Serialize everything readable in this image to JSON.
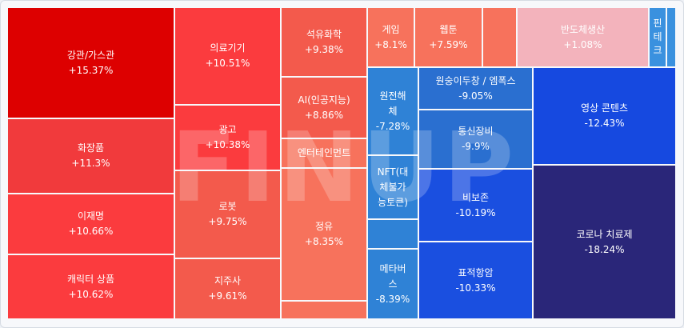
{
  "watermark": "FINUP",
  "chart_data": {
    "type": "treemap",
    "unit": "%",
    "items": [
      {
        "name": "강관/가스관",
        "value": "+15.37%",
        "change": 15.37,
        "color": "#dd0000"
      },
      {
        "name": "화장품",
        "value": "+11.3%",
        "change": 11.3,
        "color": "#f13a3c"
      },
      {
        "name": "이재명",
        "value": "+10.66%",
        "change": 10.66,
        "color": "#fb3b3e"
      },
      {
        "name": "캐릭터 상품",
        "value": "+10.62%",
        "change": 10.62,
        "color": "#fb3b3e"
      },
      {
        "name": "의료기기",
        "value": "+10.51%",
        "change": 10.51,
        "color": "#fb3b3e"
      },
      {
        "name": "광고",
        "value": "+10.38%",
        "change": 10.38,
        "color": "#fb3b3e"
      },
      {
        "name": "로봇",
        "value": "+9.75%",
        "change": 9.75,
        "color": "#f35a4c"
      },
      {
        "name": "지주사",
        "value": "+9.61%",
        "change": 9.61,
        "color": "#f35a4c"
      },
      {
        "name": "석유화학",
        "value": "+9.38%",
        "change": 9.38,
        "color": "#f35a4c"
      },
      {
        "name": "AI(인공지능)",
        "value": "+8.86%",
        "change": 8.86,
        "color": "#f35a4c"
      },
      {
        "name": "엔터테인먼트",
        "value": "",
        "change": null,
        "color": "#f7725c"
      },
      {
        "name": "정유",
        "value": "+8.35%",
        "change": 8.35,
        "color": "#f7725c"
      },
      {
        "name": "",
        "value": "",
        "change": null,
        "color": "#f7725c"
      },
      {
        "name": "게임",
        "value": "+8.1%",
        "change": 8.1,
        "color": "#f7725c"
      },
      {
        "name": "웹툰",
        "value": "+7.59%",
        "change": 7.59,
        "color": "#f7725c"
      },
      {
        "name": "",
        "value": "",
        "change": null,
        "color": "#f7725c"
      },
      {
        "name": "반도체생산",
        "value": "+1.08%",
        "change": 1.08,
        "color": "#f3b3bc"
      },
      {
        "name": "핀테크",
        "value": "",
        "change": null,
        "color": "#3a91df"
      },
      {
        "name": "",
        "value": "",
        "change": null,
        "color": "#3a91df"
      },
      {
        "name": "원전해체",
        "value": "-7.28%",
        "change": -7.28,
        "color": "#2f82d6"
      },
      {
        "name": "NFT(대체불가능토큰)",
        "value": "",
        "change": null,
        "color": "#2f82d6"
      },
      {
        "name": "",
        "value": "",
        "change": null,
        "color": "#2f82d6"
      },
      {
        "name": "메타버스",
        "value": "-8.39%",
        "change": -8.39,
        "color": "#2f82d6"
      },
      {
        "name": "원숭이두창 / 엠폭스",
        "value": "-9.05%",
        "change": -9.05,
        "color": "#2a6fd0"
      },
      {
        "name": "통신장비",
        "value": "-9.9%",
        "change": -9.9,
        "color": "#2a6fd0"
      },
      {
        "name": "비보존",
        "value": "-10.19%",
        "change": -10.19,
        "color": "#1a4fe0"
      },
      {
        "name": "표적항암",
        "value": "-10.33%",
        "change": -10.33,
        "color": "#1a4fe0"
      },
      {
        "name": "영상 콘텐츠",
        "value": "-12.43%",
        "change": -12.43,
        "color": "#1649e0"
      },
      {
        "name": "코로나 치료제",
        "value": "-18.24%",
        "change": -18.24,
        "color": "#2a2679"
      }
    ]
  }
}
